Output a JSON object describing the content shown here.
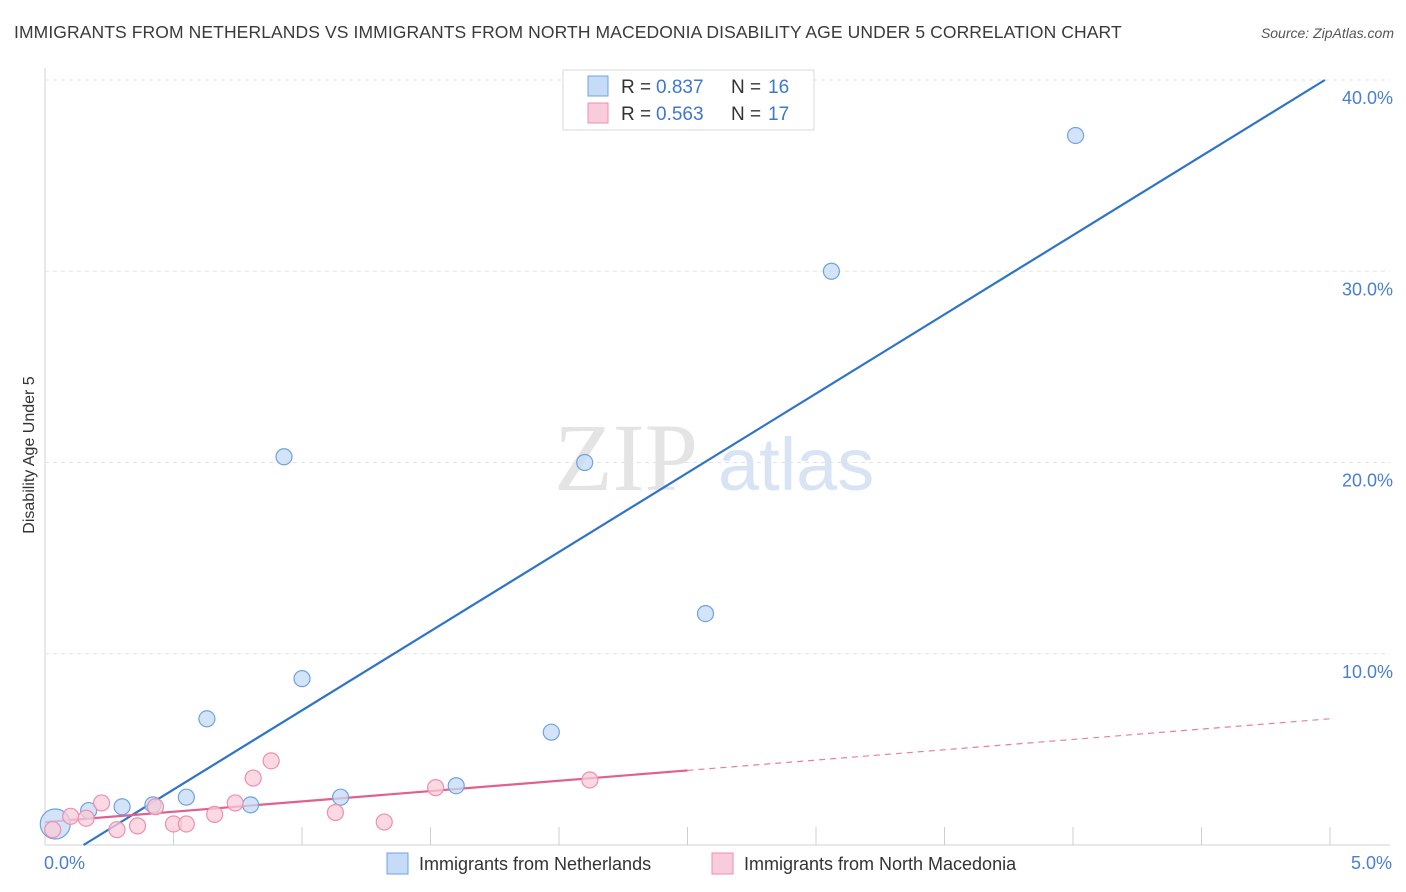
{
  "title": "IMMIGRANTS FROM NETHERLANDS VS IMMIGRANTS FROM NORTH MACEDONIA DISABILITY AGE UNDER 5 CORRELATION CHART",
  "source": "Source: ZipAtlas.com",
  "watermark": {
    "zip": "ZIP",
    "atlas": "atlas"
  },
  "legend_top": {
    "rows": [
      {
        "r_label": "R = ",
        "r_value": "0.837",
        "n_label": "N = ",
        "n_value": "16"
      },
      {
        "r_label": "R = ",
        "r_value": "0.563",
        "n_label": "N = ",
        "n_value": "17"
      }
    ]
  },
  "chart_data": {
    "type": "scatter",
    "title": "IMMIGRANTS FROM NETHERLANDS VS IMMIGRANTS FROM NORTH MACEDONIA DISABILITY AGE UNDER 5 CORRELATION CHART",
    "xlabel": "",
    "ylabel": "Disability Age Under 5",
    "xlim": [
      0,
      5
    ],
    "ylim": [
      0,
      40.5
    ],
    "x_tick_labels": [
      "0.0%",
      "5.0%"
    ],
    "y_ticks": [
      10,
      20,
      30,
      40
    ],
    "y_tick_labels": [
      "10.0%",
      "20.0%",
      "30.0%",
      "40.0%"
    ],
    "colors": {
      "netherlands": "#6fa3e0",
      "netherlands_fill": "#c6dbf5",
      "netherlands_line": "#2f74c8",
      "macedonia": "#ee8fae",
      "macedonia_fill": "#f8ccda",
      "macedonia_line": "#e0608f"
    },
    "series": [
      {
        "name": "Immigrants from Netherlands",
        "R": 0.837,
        "N": 16,
        "points": [
          [
            0.04,
            1.1
          ],
          [
            0.17,
            1.8
          ],
          [
            0.3,
            2.0
          ],
          [
            0.42,
            2.1
          ],
          [
            0.55,
            2.5
          ],
          [
            0.63,
            6.6
          ],
          [
            0.8,
            2.1
          ],
          [
            0.93,
            20.3
          ],
          [
            1.0,
            8.7
          ],
          [
            1.15,
            2.5
          ],
          [
            1.6,
            3.1
          ],
          [
            1.97,
            5.9
          ],
          [
            2.1,
            20.0
          ],
          [
            2.57,
            12.1
          ],
          [
            3.06,
            30.0
          ],
          [
            4.01,
            37.1
          ]
        ],
        "trend": {
          "x": [
            0.15,
            4.98
          ],
          "y": [
            0.0,
            40.0
          ]
        }
      },
      {
        "name": "Immigrants from North Macedonia",
        "R": 0.563,
        "N": 17,
        "points": [
          [
            0.03,
            0.8
          ],
          [
            0.1,
            1.5
          ],
          [
            0.16,
            1.4
          ],
          [
            0.22,
            2.2
          ],
          [
            0.28,
            0.8
          ],
          [
            0.36,
            1.0
          ],
          [
            0.43,
            2.0
          ],
          [
            0.5,
            1.1
          ],
          [
            0.55,
            1.1
          ],
          [
            0.66,
            1.6
          ],
          [
            0.74,
            2.2
          ],
          [
            0.81,
            3.5
          ],
          [
            0.88,
            4.4
          ],
          [
            1.13,
            1.7
          ],
          [
            1.32,
            1.2
          ],
          [
            1.52,
            3.0
          ],
          [
            2.12,
            3.4
          ]
        ],
        "trend": {
          "x": [
            0.0,
            2.5
          ],
          "y": [
            1.2,
            3.9
          ]
        },
        "trend_extension": {
          "x": [
            2.5,
            5.0
          ],
          "y": [
            3.9,
            6.6
          ]
        }
      }
    ],
    "legend": [
      "Immigrants from Netherlands",
      "Immigrants from North Macedonia"
    ]
  }
}
